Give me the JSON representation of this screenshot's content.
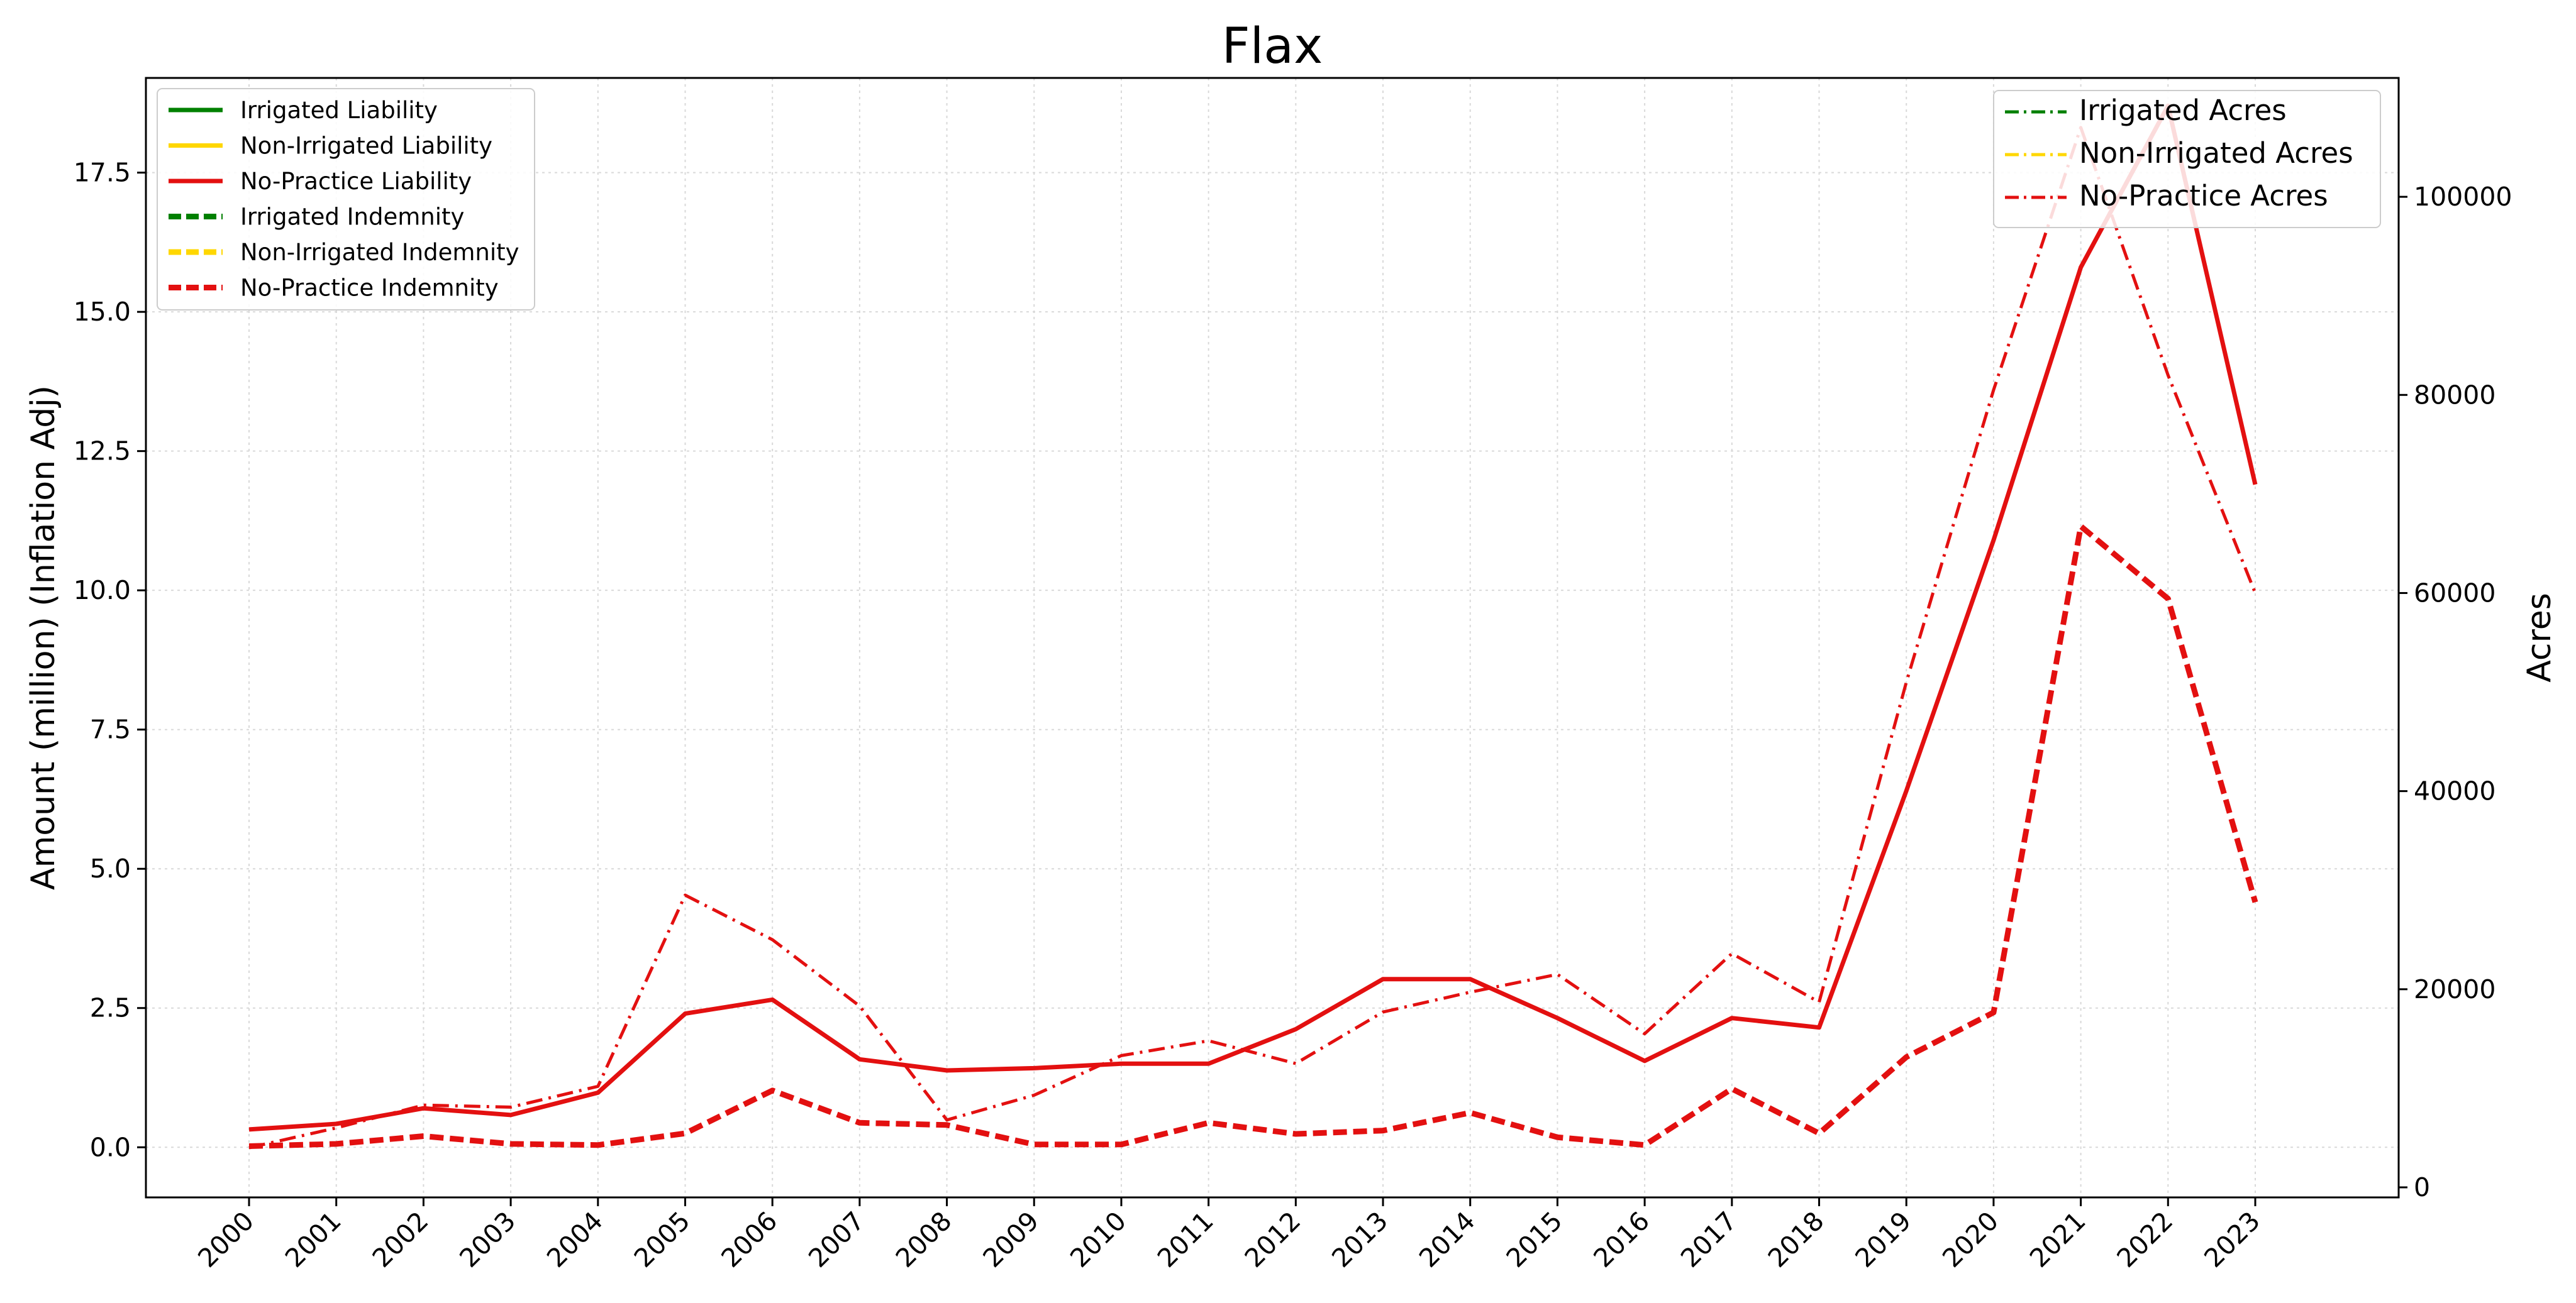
{
  "chart_data": {
    "type": "line",
    "title": "Flax",
    "ylabel": "Amount (million) (Inflation Adj)",
    "y2label": "Acres",
    "xlabel": "",
    "ylim": [
      -0.9,
      19.2
    ],
    "y2lim": [
      0,
      112000
    ],
    "y_ticks": [
      "0.0",
      "2.5",
      "5.0",
      "7.5",
      "10.0",
      "12.5",
      "15.0",
      "17.5"
    ],
    "y2_ticks": [
      "0",
      "20000",
      "40000",
      "60000",
      "80000",
      "100000"
    ],
    "grid": true,
    "x": [
      "2000",
      "2001",
      "2002",
      "2003",
      "2004",
      "2005",
      "2006",
      "2007",
      "2008",
      "2009",
      "2010",
      "2011",
      "2012",
      "2013",
      "2014",
      "2015",
      "2016",
      "2017",
      "2018",
      "2019",
      "2020",
      "2021",
      "2022",
      "2023"
    ],
    "colors": {
      "irrigated": "#008000",
      "non_irrigated": "#FFD700",
      "no_practice": "#E31010"
    },
    "legend_left": {
      "position": "upper-left",
      "entries": [
        {
          "label": "Irrigated Liability",
          "color": "#008000",
          "style": "solid"
        },
        {
          "label": "Non-Irrigated Liability",
          "color": "#FFD700",
          "style": "solid"
        },
        {
          "label": "No-Practice Liability",
          "color": "#E31010",
          "style": "solid"
        },
        {
          "label": "Irrigated Indemnity",
          "color": "#008000",
          "style": "dashed"
        },
        {
          "label": "Non-Irrigated Indemnity",
          "color": "#FFD700",
          "style": "dashed"
        },
        {
          "label": "No-Practice Indemnity",
          "color": "#E31010",
          "style": "dashed"
        }
      ]
    },
    "legend_right": {
      "position": "upper-right",
      "entries": [
        {
          "label": "Irrigated Acres",
          "color": "#008000",
          "style": "dashdot"
        },
        {
          "label": "Non-Irrigated Acres",
          "color": "#FFD700",
          "style": "dashdot"
        },
        {
          "label": "No-Practice Acres",
          "color": "#E31010",
          "style": "dashdot"
        }
      ]
    },
    "series": [
      {
        "name": "No-Practice Liability",
        "axis": "left",
        "style": "solid",
        "color": "#E31010",
        "values": [
          0.32,
          0.42,
          0.7,
          0.58,
          0.98,
          2.4,
          2.65,
          1.58,
          1.38,
          1.42,
          1.5,
          1.5,
          2.12,
          3.02,
          3.02,
          2.32,
          1.55,
          2.32,
          2.15,
          6.4,
          10.9,
          15.8,
          18.7,
          11.9
        ]
      },
      {
        "name": "No-Practice Indemnity",
        "axis": "left",
        "style": "dashed",
        "color": "#E31010",
        "values": [
          0.02,
          0.06,
          0.2,
          0.06,
          0.04,
          0.25,
          1.02,
          0.44,
          0.4,
          0.05,
          0.05,
          0.44,
          0.24,
          0.3,
          0.62,
          0.18,
          0.04,
          1.05,
          0.25,
          1.62,
          2.42,
          11.15,
          9.85,
          4.4
        ]
      },
      {
        "name": "No-Practice Acres",
        "axis": "right",
        "style": "dashdot",
        "color": "#E31010",
        "values": [
          4000,
          6000,
          8300,
          8100,
          10200,
          29500,
          25000,
          18300,
          6800,
          9300,
          13300,
          14800,
          12500,
          17700,
          19700,
          21500,
          15500,
          23600,
          18700,
          51000,
          80500,
          107000,
          82000,
          60000
        ]
      }
    ]
  }
}
